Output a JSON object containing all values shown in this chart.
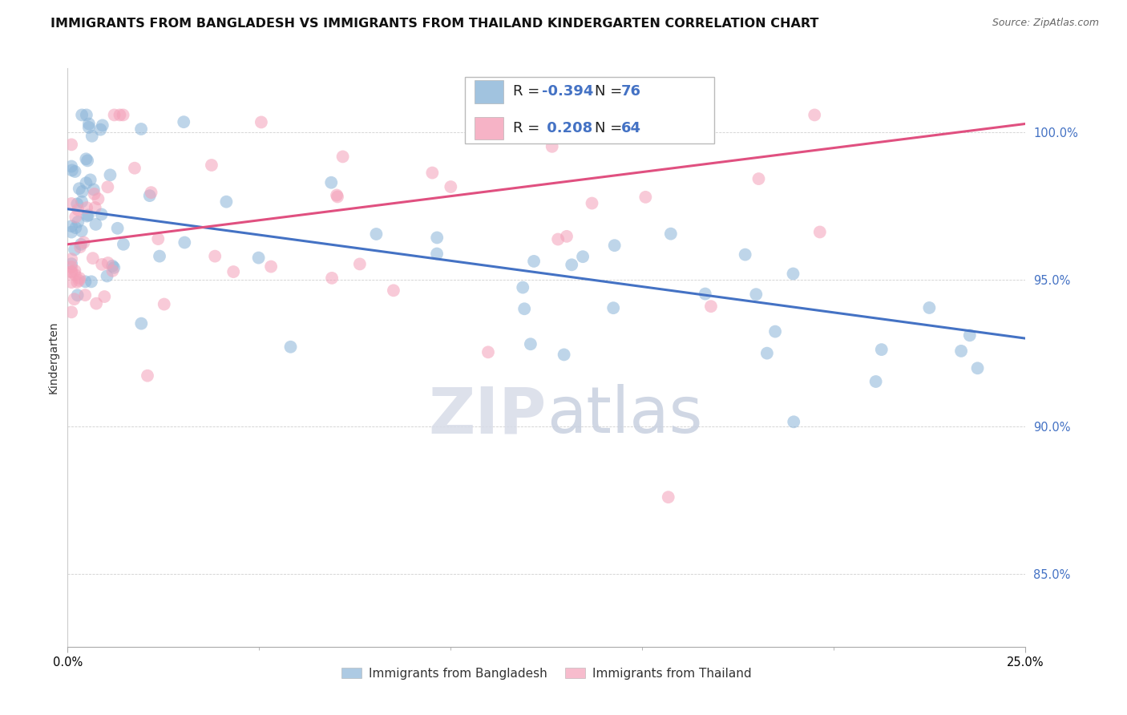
{
  "title": "IMMIGRANTS FROM BANGLADESH VS IMMIGRANTS FROM THAILAND KINDERGARTEN CORRELATION CHART",
  "source": "Source: ZipAtlas.com",
  "ylabel": "Kindergarten",
  "y_tick_values": [
    0.85,
    0.9,
    0.95,
    1.0
  ],
  "x_min": 0.0,
  "x_max": 0.25,
  "y_min": 0.825,
  "y_max": 1.022,
  "blue_color": "#8ab4d8",
  "pink_color": "#f4a0b8",
  "blue_line_color": "#4472c4",
  "pink_line_color": "#e05080",
  "R_blue": -0.394,
  "N_blue": 76,
  "R_pink": 0.208,
  "N_pink": 64,
  "blue_line": {
    "x0": 0.0,
    "y0": 0.974,
    "x1": 0.25,
    "y1": 0.93
  },
  "pink_line": {
    "x0": 0.0,
    "y0": 0.962,
    "x1": 0.25,
    "y1": 1.003
  },
  "watermark_zip": "ZIP",
  "watermark_atlas": "atlas",
  "background_color": "#ffffff",
  "grid_color": "#d0d0d0",
  "title_fontsize": 11.5,
  "source_fontsize": 9,
  "legend_label_blue": "Immigrants from Bangladesh",
  "legend_label_pink": "Immigrants from Thailand",
  "ytick_color": "#4472c4"
}
